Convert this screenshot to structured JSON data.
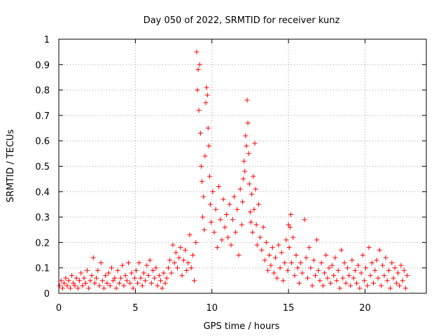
{
  "chart_data": {
    "type": "scatter",
    "title": "Day 050 of 2022, SRMTID for receiver kunz",
    "xlabel": "GPS time / hours",
    "ylabel": "SRMTID / TECUs",
    "xlim": [
      0,
      24
    ],
    "ylim": [
      0,
      1
    ],
    "x_ticks": [
      0,
      5,
      10,
      15,
      20
    ],
    "x_tick_labels": [
      "0",
      "5",
      "10",
      "15",
      "20"
    ],
    "y_ticks": [
      0,
      0.1,
      0.2,
      0.3,
      0.4,
      0.5,
      0.6,
      0.7,
      0.8,
      0.9,
      1
    ],
    "y_tick_labels": [
      "0",
      "0.1",
      "0.2",
      "0.3",
      "0.4",
      "0.5",
      "0.6",
      "0.7",
      "0.8",
      "0.9",
      "1"
    ],
    "grid": true,
    "marker": "+",
    "series": [
      {
        "name": "SRMTID",
        "color": "#ff0000",
        "points": [
          [
            0.05,
            0.03
          ],
          [
            0.15,
            0.05
          ],
          [
            0.25,
            0.02
          ],
          [
            0.35,
            0.04
          ],
          [
            0.45,
            0.06
          ],
          [
            0.55,
            0.03
          ],
          [
            0.65,
            0.05
          ],
          [
            0.75,
            0.02
          ],
          [
            0.85,
            0.07
          ],
          [
            0.95,
            0.04
          ],
          [
            1.05,
            0.03
          ],
          [
            1.15,
            0.06
          ],
          [
            1.25,
            0.02
          ],
          [
            1.35,
            0.05
          ],
          [
            1.45,
            0.08
          ],
          [
            1.55,
            0.03
          ],
          [
            1.65,
            0.06
          ],
          [
            1.75,
            0.04
          ],
          [
            1.85,
            0.09
          ],
          [
            1.95,
            0.02
          ],
          [
            2.05,
            0.05
          ],
          [
            2.15,
            0.07
          ],
          [
            2.25,
            0.14
          ],
          [
            2.35,
            0.04
          ],
          [
            2.45,
            0.06
          ],
          [
            2.55,
            0.09
          ],
          [
            2.65,
            0.03
          ],
          [
            2.75,
            0.12
          ],
          [
            2.85,
            0.05
          ],
          [
            2.95,
            0.02
          ],
          [
            3.05,
            0.07
          ],
          [
            3.15,
            0.04
          ],
          [
            3.25,
            0.08
          ],
          [
            3.35,
            0.03
          ],
          [
            3.45,
            0.1
          ],
          [
            3.55,
            0.05
          ],
          [
            3.65,
            0.06
          ],
          [
            3.75,
            0.02
          ],
          [
            3.85,
            0.09
          ],
          [
            3.95,
            0.04
          ],
          [
            4.05,
            0.06
          ],
          [
            4.15,
            0.11
          ],
          [
            4.25,
            0.03
          ],
          [
            4.35,
            0.07
          ],
          [
            4.45,
            0.05
          ],
          [
            4.55,
            0.12
          ],
          [
            4.65,
            0.04
          ],
          [
            4.75,
            0.08
          ],
          [
            4.85,
            0.02
          ],
          [
            4.95,
            0.06
          ],
          [
            5.05,
            0.09
          ],
          [
            5.15,
            0.04
          ],
          [
            5.25,
            0.12
          ],
          [
            5.35,
            0.06
          ],
          [
            5.45,
            0.03
          ],
          [
            5.55,
            0.08
          ],
          [
            5.65,
            0.05
          ],
          [
            5.75,
            0.11
          ],
          [
            5.85,
            0.07
          ],
          [
            5.95,
            0.13
          ],
          [
            6.05,
            0.04
          ],
          [
            6.15,
            0.09
          ],
          [
            6.25,
            0.06
          ],
          [
            6.35,
            0.1
          ],
          [
            6.45,
            0.03
          ],
          [
            6.55,
            0.07
          ],
          [
            6.65,
            0.05
          ],
          [
            6.75,
            0.02
          ],
          [
            6.85,
            0.08
          ],
          [
            6.95,
            0.04
          ],
          [
            7.05,
            0.06
          ],
          [
            7.15,
            0.1
          ],
          [
            7.25,
            0.13
          ],
          [
            7.35,
            0.08
          ],
          [
            7.45,
            0.19
          ],
          [
            7.55,
            0.12
          ],
          [
            7.65,
            0.16
          ],
          [
            7.75,
            0.1
          ],
          [
            7.85,
            0.14
          ],
          [
            7.95,
            0.18
          ],
          [
            8.05,
            0.07
          ],
          [
            8.15,
            0.13
          ],
          [
            8.25,
            0.17
          ],
          [
            8.35,
            0.09
          ],
          [
            8.45,
            0.12
          ],
          [
            8.55,
            0.23
          ],
          [
            8.65,
            0.1
          ],
          [
            8.75,
            0.15
          ],
          [
            8.85,
            0.05
          ],
          [
            8.95,
            0.2
          ],
          [
            9.0,
            0.95
          ],
          [
            9.05,
            0.8
          ],
          [
            9.1,
            0.88
          ],
          [
            9.15,
            0.72
          ],
          [
            9.2,
            0.9
          ],
          [
            9.25,
            0.63
          ],
          [
            9.3,
            0.5
          ],
          [
            9.35,
            0.44
          ],
          [
            9.4,
            0.3
          ],
          [
            9.45,
            0.38
          ],
          [
            9.5,
            0.25
          ],
          [
            9.55,
            0.54
          ],
          [
            9.6,
            0.75
          ],
          [
            9.65,
            0.81
          ],
          [
            9.7,
            0.78
          ],
          [
            9.75,
            0.65
          ],
          [
            9.8,
            0.58
          ],
          [
            9.85,
            0.46
          ],
          [
            9.9,
            0.35
          ],
          [
            9.95,
            0.28
          ],
          [
            10.05,
            0.4
          ],
          [
            10.15,
            0.24
          ],
          [
            10.25,
            0.33
          ],
          [
            10.35,
            0.18
          ],
          [
            10.45,
            0.42
          ],
          [
            10.55,
            0.29
          ],
          [
            10.65,
            0.21
          ],
          [
            10.75,
            0.37
          ],
          [
            10.85,
            0.26
          ],
          [
            10.95,
            0.31
          ],
          [
            11.05,
            0.22
          ],
          [
            11.15,
            0.35
          ],
          [
            11.25,
            0.19
          ],
          [
            11.35,
            0.29
          ],
          [
            11.45,
            0.38
          ],
          [
            11.55,
            0.24
          ],
          [
            11.65,
            0.33
          ],
          [
            11.75,
            0.15
          ],
          [
            11.85,
            0.41
          ],
          [
            11.95,
            0.27
          ],
          [
            12.0,
            0.36
          ],
          [
            12.05,
            0.45
          ],
          [
            12.1,
            0.52
          ],
          [
            12.15,
            0.48
          ],
          [
            12.2,
            0.62
          ],
          [
            12.25,
            0.58
          ],
          [
            12.3,
            0.76
          ],
          [
            12.35,
            0.67
          ],
          [
            12.4,
            0.55
          ],
          [
            12.45,
            0.43
          ],
          [
            12.5,
            0.32
          ],
          [
            12.55,
            0.28
          ],
          [
            12.6,
            0.39
          ],
          [
            12.65,
            0.24
          ],
          [
            12.7,
            0.46
          ],
          [
            12.75,
            0.33
          ],
          [
            12.8,
            0.59
          ],
          [
            12.85,
            0.41
          ],
          [
            12.9,
            0.27
          ],
          [
            12.95,
            0.19
          ],
          [
            13.05,
            0.35
          ],
          [
            13.15,
            0.22
          ],
          [
            13.25,
            0.17
          ],
          [
            13.35,
            0.26
          ],
          [
            13.45,
            0.13
          ],
          [
            13.55,
            0.2
          ],
          [
            13.65,
            0.09
          ],
          [
            13.75,
            0.15
          ],
          [
            13.85,
            0.11
          ],
          [
            13.95,
            0.18
          ],
          [
            14.05,
            0.08
          ],
          [
            14.15,
            0.14
          ],
          [
            14.25,
            0.06
          ],
          [
            14.35,
            0.19
          ],
          [
            14.45,
            0.1
          ],
          [
            14.55,
            0.16
          ],
          [
            14.65,
            0.05
          ],
          [
            14.75,
            0.12
          ],
          [
            14.85,
            0.21
          ],
          [
            14.95,
            0.09
          ],
          [
            15.0,
            0.27
          ],
          [
            15.05,
            0.18
          ],
          [
            15.1,
            0.26
          ],
          [
            15.15,
            0.31
          ],
          [
            15.2,
            0.12
          ],
          [
            15.3,
            0.22
          ],
          [
            15.4,
            0.07
          ],
          [
            15.5,
            0.15
          ],
          [
            15.6,
            0.1
          ],
          [
            15.7,
            0.04
          ],
          [
            15.8,
            0.12
          ],
          [
            15.9,
            0.08
          ],
          [
            16.05,
            0.29
          ],
          [
            16.15,
            0.14
          ],
          [
            16.25,
            0.06
          ],
          [
            16.35,
            0.18
          ],
          [
            16.45,
            0.1
          ],
          [
            16.55,
            0.03
          ],
          [
            16.65,
            0.13
          ],
          [
            16.75,
            0.07
          ],
          [
            16.85,
            0.21
          ],
          [
            16.95,
            0.09
          ],
          [
            17.05,
            0.05
          ],
          [
            17.15,
            0.12
          ],
          [
            17.25,
            0.03
          ],
          [
            17.35,
            0.08
          ],
          [
            17.45,
            0.15
          ],
          [
            17.55,
            0.06
          ],
          [
            17.65,
            0.1
          ],
          [
            17.75,
            0.04
          ],
          [
            17.85,
            0.11
          ],
          [
            17.95,
            0.07
          ],
          [
            18.05,
            0.14
          ],
          [
            18.15,
            0.05
          ],
          [
            18.25,
            0.09
          ],
          [
            18.35,
            0.02
          ],
          [
            18.45,
            0.17
          ],
          [
            18.55,
            0.06
          ],
          [
            18.65,
            0.12
          ],
          [
            18.75,
            0.04
          ],
          [
            18.85,
            0.1
          ],
          [
            18.95,
            0.07
          ],
          [
            19.05,
            0.03
          ],
          [
            19.15,
            0.13
          ],
          [
            19.25,
            0.06
          ],
          [
            19.35,
            0.09
          ],
          [
            19.45,
            0.04
          ],
          [
            19.55,
            0.11
          ],
          [
            19.65,
            0.02
          ],
          [
            19.75,
            0.08
          ],
          [
            19.85,
            0.15
          ],
          [
            19.95,
            0.05
          ],
          [
            20.05,
            0.1
          ],
          [
            20.15,
            0.03
          ],
          [
            20.25,
            0.18
          ],
          [
            20.35,
            0.07
          ],
          [
            20.45,
            0.12
          ],
          [
            20.55,
            0.04
          ],
          [
            20.65,
            0.09
          ],
          [
            20.75,
            0.13
          ],
          [
            20.85,
            0.06
          ],
          [
            20.95,
            0.17
          ],
          [
            21.05,
            0.03
          ],
          [
            21.15,
            0.11
          ],
          [
            21.25,
            0.07
          ],
          [
            21.35,
            0.14
          ],
          [
            21.45,
            0.05
          ],
          [
            21.55,
            0.09
          ],
          [
            21.65,
            0.02
          ],
          [
            21.75,
            0.12
          ],
          [
            21.85,
            0.06
          ],
          [
            21.95,
            0.1
          ],
          [
            22.05,
            0.04
          ],
          [
            22.15,
            0.08
          ],
          [
            22.25,
            0.03
          ],
          [
            22.35,
            0.11
          ],
          [
            22.45,
            0.05
          ],
          [
            22.55,
            0.09
          ],
          [
            22.65,
            0.02
          ],
          [
            22.75,
            0.07
          ]
        ]
      }
    ]
  }
}
